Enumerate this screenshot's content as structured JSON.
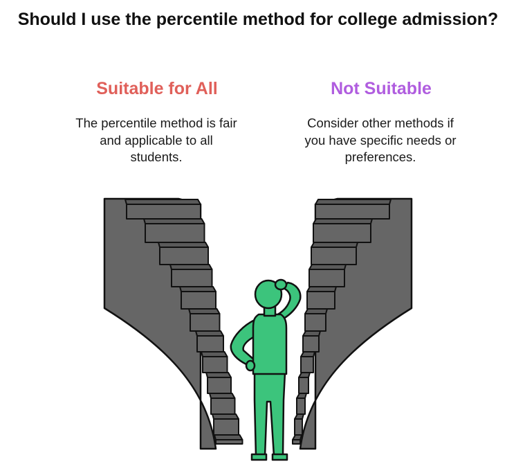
{
  "title": "Should I use the percentile method for college admission?",
  "options": [
    {
      "heading": "Suitable for All",
      "description": "The percentile method is fair and applicable to all students.",
      "color": "#e0605a"
    },
    {
      "heading": "Not Suitable",
      "description": "Consider other methods if you have specific needs or preferences.",
      "color": "#b05ddf"
    }
  ],
  "colors": {
    "stairs_fill": "#666666",
    "stairs_outline": "#111111",
    "person_fill": "#3cc47c"
  },
  "illustration": {
    "stairs_icon": "staircase-icon",
    "person_icon": "person-thinking-icon"
  }
}
